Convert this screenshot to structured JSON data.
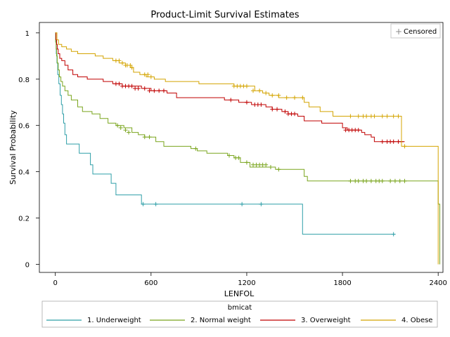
{
  "chart_data": {
    "type": "line",
    "title": "Product-Limit Survival Estimates",
    "xlabel": "LENFOL",
    "ylabel": "Survival Probability",
    "xlim": [
      -100,
      2430
    ],
    "ylim": [
      -0.035,
      1.045
    ],
    "xticks": [
      0,
      600,
      1200,
      1800,
      2400
    ],
    "yticks": [
      0,
      0.2,
      0.4,
      0.6,
      0.8,
      1
    ],
    "ytick_labels": [
      "0",
      "0.2",
      "0.4",
      "0.6",
      "0.8",
      "1"
    ],
    "censored_label": "Censored",
    "legend_title": "bmicat",
    "series": [
      {
        "name": "1. Underweight",
        "color": "#2f9fa8",
        "steps": [
          [
            0,
            1
          ],
          [
            3,
            0.96
          ],
          [
            6,
            0.91
          ],
          [
            10,
            0.87
          ],
          [
            15,
            0.82
          ],
          [
            22,
            0.78
          ],
          [
            30,
            0.73
          ],
          [
            38,
            0.69
          ],
          [
            45,
            0.65
          ],
          [
            52,
            0.61
          ],
          [
            60,
            0.56
          ],
          [
            70,
            0.52
          ],
          [
            150,
            0.48
          ],
          [
            220,
            0.43
          ],
          [
            235,
            0.39
          ],
          [
            350,
            0.35
          ],
          [
            380,
            0.3
          ],
          [
            540,
            0.26
          ],
          [
            1550,
            0.13
          ],
          [
            2130,
            0.13
          ]
        ],
        "censored": [
          [
            550,
            0.26
          ],
          [
            630,
            0.26
          ],
          [
            1170,
            0.26
          ],
          [
            1290,
            0.26
          ],
          [
            2120,
            0.13
          ]
        ]
      },
      {
        "name": "2. Normal weight",
        "color": "#7aa51e",
        "steps": [
          [
            0,
            1
          ],
          [
            2,
            0.96
          ],
          [
            5,
            0.93
          ],
          [
            8,
            0.9
          ],
          [
            12,
            0.87
          ],
          [
            18,
            0.84
          ],
          [
            25,
            0.81
          ],
          [
            35,
            0.79
          ],
          [
            45,
            0.77
          ],
          [
            60,
            0.75
          ],
          [
            80,
            0.73
          ],
          [
            100,
            0.71
          ],
          [
            140,
            0.68
          ],
          [
            170,
            0.66
          ],
          [
            230,
            0.65
          ],
          [
            280,
            0.63
          ],
          [
            330,
            0.61
          ],
          [
            380,
            0.6
          ],
          [
            430,
            0.59
          ],
          [
            480,
            0.57
          ],
          [
            520,
            0.56
          ],
          [
            560,
            0.55
          ],
          [
            630,
            0.53
          ],
          [
            680,
            0.51
          ],
          [
            850,
            0.5
          ],
          [
            890,
            0.49
          ],
          [
            950,
            0.48
          ],
          [
            1080,
            0.47
          ],
          [
            1120,
            0.46
          ],
          [
            1160,
            0.44
          ],
          [
            1220,
            0.42
          ],
          [
            1380,
            0.41
          ],
          [
            1560,
            0.38
          ],
          [
            1580,
            0.36
          ],
          [
            2360,
            0.36
          ],
          [
            2400,
            0.26
          ],
          [
            2410,
            0
          ]
        ],
        "censored": [
          [
            390,
            0.6
          ],
          [
            410,
            0.59
          ],
          [
            440,
            0.58
          ],
          [
            460,
            0.57
          ],
          [
            560,
            0.55
          ],
          [
            590,
            0.55
          ],
          [
            880,
            0.5
          ],
          [
            1090,
            0.47
          ],
          [
            1130,
            0.46
          ],
          [
            1150,
            0.46
          ],
          [
            1200,
            0.44
          ],
          [
            1240,
            0.43
          ],
          [
            1260,
            0.43
          ],
          [
            1280,
            0.43
          ],
          [
            1300,
            0.43
          ],
          [
            1320,
            0.43
          ],
          [
            1350,
            0.42
          ],
          [
            1400,
            0.41
          ],
          [
            1850,
            0.36
          ],
          [
            1880,
            0.36
          ],
          [
            1900,
            0.36
          ],
          [
            1930,
            0.36
          ],
          [
            1950,
            0.36
          ],
          [
            1980,
            0.36
          ],
          [
            2010,
            0.36
          ],
          [
            2030,
            0.36
          ],
          [
            2050,
            0.36
          ],
          [
            2100,
            0.36
          ],
          [
            2130,
            0.36
          ],
          [
            2160,
            0.36
          ],
          [
            2190,
            0.36
          ]
        ]
      },
      {
        "name": "3. Overweight",
        "color": "#c00000",
        "steps": [
          [
            0,
            1
          ],
          [
            4,
            0.97
          ],
          [
            8,
            0.95
          ],
          [
            12,
            0.93
          ],
          [
            18,
            0.91
          ],
          [
            28,
            0.89
          ],
          [
            40,
            0.88
          ],
          [
            60,
            0.86
          ],
          [
            80,
            0.84
          ],
          [
            110,
            0.82
          ],
          [
            140,
            0.81
          ],
          [
            200,
            0.8
          ],
          [
            300,
            0.79
          ],
          [
            360,
            0.78
          ],
          [
            420,
            0.77
          ],
          [
            540,
            0.76
          ],
          [
            600,
            0.75
          ],
          [
            700,
            0.74
          ],
          [
            760,
            0.72
          ],
          [
            1060,
            0.71
          ],
          [
            1150,
            0.7
          ],
          [
            1230,
            0.69
          ],
          [
            1320,
            0.68
          ],
          [
            1360,
            0.67
          ],
          [
            1420,
            0.66
          ],
          [
            1460,
            0.65
          ],
          [
            1520,
            0.64
          ],
          [
            1560,
            0.62
          ],
          [
            1670,
            0.61
          ],
          [
            1800,
            0.59
          ],
          [
            1830,
            0.58
          ],
          [
            1920,
            0.57
          ],
          [
            1940,
            0.56
          ],
          [
            1980,
            0.55
          ],
          [
            2000,
            0.53
          ],
          [
            2190,
            0.53
          ]
        ],
        "censored": [
          [
            380,
            0.78
          ],
          [
            400,
            0.78
          ],
          [
            420,
            0.77
          ],
          [
            440,
            0.77
          ],
          [
            460,
            0.77
          ],
          [
            480,
            0.77
          ],
          [
            500,
            0.76
          ],
          [
            520,
            0.76
          ],
          [
            560,
            0.76
          ],
          [
            590,
            0.75
          ],
          [
            620,
            0.75
          ],
          [
            650,
            0.75
          ],
          [
            680,
            0.75
          ],
          [
            1100,
            0.71
          ],
          [
            1200,
            0.7
          ],
          [
            1250,
            0.69
          ],
          [
            1270,
            0.69
          ],
          [
            1290,
            0.69
          ],
          [
            1360,
            0.67
          ],
          [
            1390,
            0.67
          ],
          [
            1440,
            0.66
          ],
          [
            1460,
            0.65
          ],
          [
            1480,
            0.65
          ],
          [
            1500,
            0.65
          ],
          [
            1820,
            0.58
          ],
          [
            1840,
            0.58
          ],
          [
            1860,
            0.58
          ],
          [
            1880,
            0.58
          ],
          [
            1900,
            0.58
          ],
          [
            2050,
            0.53
          ],
          [
            2080,
            0.53
          ],
          [
            2100,
            0.53
          ],
          [
            2120,
            0.53
          ],
          [
            2150,
            0.53
          ],
          [
            2170,
            0.53
          ]
        ]
      },
      {
        "name": "4. Obese",
        "color": "#d4a400",
        "steps": [
          [
            0,
            1
          ],
          [
            10,
            0.97
          ],
          [
            20,
            0.95
          ],
          [
            40,
            0.94
          ],
          [
            70,
            0.93
          ],
          [
            100,
            0.92
          ],
          [
            140,
            0.91
          ],
          [
            250,
            0.9
          ],
          [
            300,
            0.89
          ],
          [
            360,
            0.88
          ],
          [
            400,
            0.87
          ],
          [
            440,
            0.86
          ],
          [
            470,
            0.85
          ],
          [
            490,
            0.83
          ],
          [
            530,
            0.82
          ],
          [
            570,
            0.81
          ],
          [
            620,
            0.8
          ],
          [
            690,
            0.79
          ],
          [
            900,
            0.78
          ],
          [
            1120,
            0.77
          ],
          [
            1250,
            0.75
          ],
          [
            1300,
            0.74
          ],
          [
            1340,
            0.73
          ],
          [
            1400,
            0.72
          ],
          [
            1560,
            0.7
          ],
          [
            1590,
            0.68
          ],
          [
            1660,
            0.66
          ],
          [
            1740,
            0.64
          ],
          [
            2150,
            0.64
          ],
          [
            2170,
            0.51
          ],
          [
            2360,
            0.51
          ],
          [
            2400,
            0
          ]
        ],
        "censored": [
          [
            380,
            0.88
          ],
          [
            400,
            0.88
          ],
          [
            420,
            0.87
          ],
          [
            440,
            0.86
          ],
          [
            450,
            0.86
          ],
          [
            470,
            0.86
          ],
          [
            480,
            0.85
          ],
          [
            560,
            0.82
          ],
          [
            580,
            0.82
          ],
          [
            600,
            0.81
          ],
          [
            1120,
            0.77
          ],
          [
            1140,
            0.77
          ],
          [
            1160,
            0.77
          ],
          [
            1180,
            0.77
          ],
          [
            1200,
            0.77
          ],
          [
            1240,
            0.75
          ],
          [
            1280,
            0.75
          ],
          [
            1320,
            0.74
          ],
          [
            1360,
            0.73
          ],
          [
            1400,
            0.73
          ],
          [
            1450,
            0.72
          ],
          [
            1500,
            0.72
          ],
          [
            1550,
            0.72
          ],
          [
            1850,
            0.64
          ],
          [
            1900,
            0.64
          ],
          [
            1930,
            0.64
          ],
          [
            1950,
            0.64
          ],
          [
            1980,
            0.64
          ],
          [
            2000,
            0.64
          ],
          [
            2050,
            0.64
          ],
          [
            2080,
            0.64
          ],
          [
            2120,
            0.64
          ],
          [
            2150,
            0.64
          ],
          [
            2190,
            0.51
          ]
        ]
      }
    ]
  }
}
